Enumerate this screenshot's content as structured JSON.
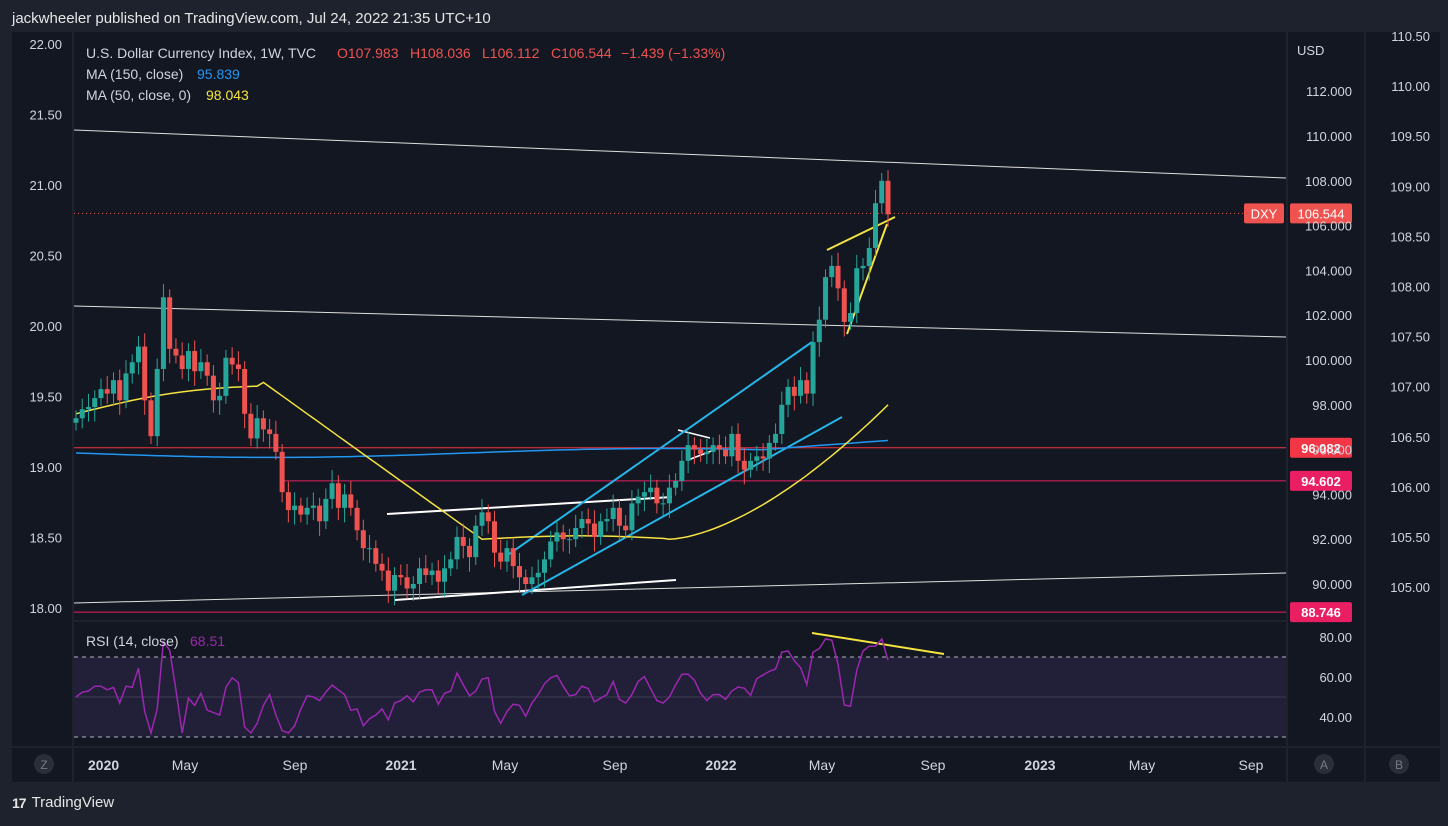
{
  "header": {
    "publisher": "jackwheeler published on TradingView.com, Jul 24, 2022 21:35 UTC+10"
  },
  "footer": {
    "brand": "TradingView"
  },
  "legend": {
    "symbol": "U.S. Dollar Currency Index, 1W, TVC",
    "o": "O107.983",
    "h": "H108.036",
    "l": "L106.112",
    "c": "C106.544",
    "chg": "−1.439 (−1.33%)",
    "ma150_label": "MA (150, close)",
    "ma150_val": "95.839",
    "ma50_label": "MA (50, close, 0)",
    "ma50_val": "98.043",
    "rsi_label": "RSI (14, close)",
    "rsi_val": "68.51"
  },
  "buttons": {
    "z": "Z",
    "a": "A",
    "b": "B"
  },
  "colors": {
    "up": "#26a69a",
    "down": "#ef5350",
    "ma150": "#2196f3",
    "ma50": "#f5e342",
    "rsi": "#9c27b0",
    "channel": "#26b5e8",
    "yellow": "#f5e342",
    "red_line": "#f23645",
    "pink_line": "#e91e63"
  },
  "chart_data": {
    "type": "candlestick",
    "title": "U.S. Dollar Currency Index, 1W, TVC",
    "currency": "USD",
    "x_tick_labels": [
      "2020",
      "May",
      "Sep",
      "2021",
      "May",
      "Sep",
      "2022",
      "May",
      "Sep",
      "2023",
      "May",
      "Sep"
    ],
    "left_axis": {
      "ticks": [
        "22.00",
        "21.50",
        "21.00",
        "20.50",
        "20.00",
        "19.50",
        "19.00",
        "18.50",
        "18.00"
      ],
      "range": [
        17.95,
        22.1
      ]
    },
    "usd_axis": {
      "ticks": [
        "112.000",
        "110.000",
        "108.000",
        "106.000",
        "104.000",
        "102.000",
        "100.000",
        "98.000",
        "96.000",
        "94.000",
        "92.000",
        "90.000"
      ],
      "range": [
        87.9,
        114.2
      ]
    },
    "right_axis": {
      "ticks": [
        "110.50",
        "110.00",
        "109.50",
        "109.00",
        "108.50",
        "108.00",
        "107.50",
        "107.00",
        "106.50",
        "106.00",
        "105.50",
        "105.00"
      ]
    },
    "price_labels": [
      {
        "text": "DXY",
        "value": 106.544
      },
      {
        "text": "106.544",
        "value": 106.544
      },
      {
        "text": "96.082",
        "value": 96.082
      },
      {
        "text": "94.602",
        "value": 94.602
      },
      {
        "text": "88.746",
        "value": 88.746
      }
    ],
    "rsi_axis": {
      "ticks": [
        "80.00",
        "60.00",
        "40.00"
      ],
      "overbought": 70,
      "oversold": 30,
      "range": [
        28,
        82
      ]
    },
    "candles_weekly_close": [
      97.4,
      97.8,
      97.9,
      98.3,
      98.7,
      98.5,
      99.1,
      98.2,
      99.4,
      99.9,
      100.6,
      98.2,
      96.6,
      99.6,
      102.8,
      100.5,
      100.2,
      99.6,
      100.4,
      99.5,
      99.9,
      99.3,
      98.2,
      98.4,
      100.1,
      99.8,
      99.6,
      97.6,
      96.5,
      97.4,
      96.9,
      96.7,
      95.9,
      94.1,
      93.3,
      93.5,
      93.1,
      93.4,
      93.5,
      92.8,
      93.8,
      94.5,
      93.4,
      94.0,
      93.4,
      92.4,
      91.6,
      91.6,
      90.9,
      90.6,
      89.7,
      90.4,
      90.3,
      89.8,
      90.0,
      90.7,
      90.4,
      90.6,
      90.1,
      90.7,
      91.1,
      92.1,
      91.7,
      91.2,
      92.6,
      93.2,
      92.8,
      91.4,
      91.0,
      91.6,
      90.8,
      90.3,
      90.0,
      90.3,
      90.5,
      91.1,
      91.9,
      92.3,
      92.0,
      92.0,
      92.5,
      92.9,
      92.7,
      92.1,
      92.8,
      92.9,
      93.4,
      92.6,
      92.4,
      93.6,
      93.9,
      94.1,
      94.3,
      93.6,
      93.6,
      94.3,
      94.6,
      95.5,
      96.2,
      96.0,
      95.8,
      95.9,
      96.2,
      96.0,
      95.7,
      96.7,
      95.5,
      95.1,
      95.5,
      95.7,
      95.6,
      96.3,
      96.7,
      98.0,
      98.8,
      98.4,
      99.1,
      98.5,
      100.8,
      101.8,
      103.7,
      104.2,
      103.2,
      101.7,
      102.1,
      104.1,
      104.2,
      105.0,
      107.0,
      108.0,
      106.5
    ],
    "ma150_close_start": 95.839,
    "ma50_close_end": 98.043,
    "rsi_close_end": 68.51
  }
}
